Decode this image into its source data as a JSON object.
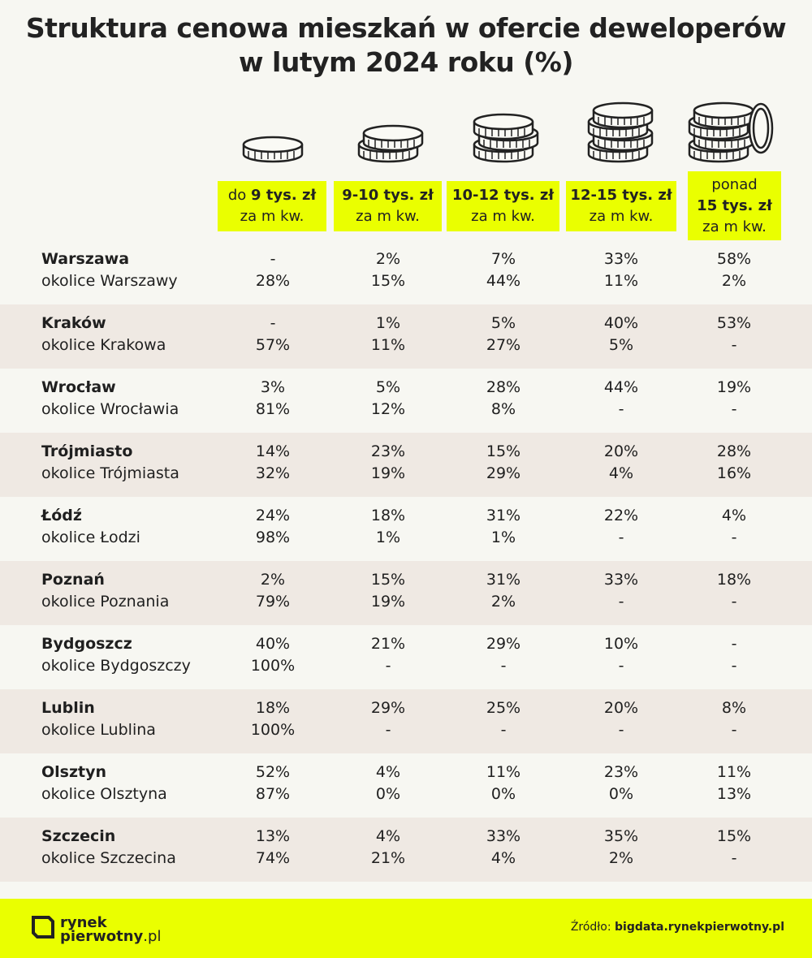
{
  "title_line1": "Struktura cenowa mieszkań w ofercie deweloperów",
  "title_line2": "w lutym 2024 roku (%)",
  "chart_data": {
    "type": "table",
    "columns": [
      {
        "pre": "do ",
        "bold": "9 tys. zł",
        "post": "za m kw."
      },
      {
        "pre": "",
        "bold": "9-10 tys. zł",
        "post": "za m kw."
      },
      {
        "pre": "",
        "bold": "10-12 tys. zł",
        "post": "za m kw."
      },
      {
        "pre": "",
        "bold": "12-15 tys. zł",
        "post": "za m kw."
      },
      {
        "pre": "ponad",
        "bold": "15 tys. zł",
        "post": "za m kw."
      }
    ],
    "rows": [
      {
        "city": "Warszawa",
        "area": "okolice Warszawy",
        "city_values": [
          "-",
          "2%",
          "7%",
          "33%",
          "58%"
        ],
        "area_values": [
          "28%",
          "15%",
          "44%",
          "11%",
          "2%"
        ]
      },
      {
        "city": "Kraków",
        "area": "okolice Krakowa",
        "city_values": [
          "-",
          "1%",
          "5%",
          "40%",
          "53%"
        ],
        "area_values": [
          "57%",
          "11%",
          "27%",
          "5%",
          "-"
        ]
      },
      {
        "city": "Wrocław",
        "area": "okolice Wrocławia",
        "city_values": [
          "3%",
          "5%",
          "28%",
          "44%",
          "19%"
        ],
        "area_values": [
          "81%",
          "12%",
          "8%",
          "-",
          "-"
        ]
      },
      {
        "city": "Trójmiasto",
        "area": "okolice Trójmiasta",
        "city_values": [
          "14%",
          "23%",
          "15%",
          "20%",
          "28%"
        ],
        "area_values": [
          "32%",
          "19%",
          "29%",
          "4%",
          "16%"
        ]
      },
      {
        "city": "Łódź",
        "area": "okolice Łodzi",
        "city_values": [
          "24%",
          "18%",
          "31%",
          "22%",
          "4%"
        ],
        "area_values": [
          "98%",
          "1%",
          "1%",
          "-",
          "-"
        ]
      },
      {
        "city": "Poznań",
        "area": "okolice Poznania",
        "city_values": [
          "2%",
          "15%",
          "31%",
          "33%",
          "18%"
        ],
        "area_values": [
          "79%",
          "19%",
          "2%",
          "-",
          "-"
        ]
      },
      {
        "city": "Bydgoszcz",
        "area": "okolice Bydgoszczy",
        "city_values": [
          "40%",
          "21%",
          "29%",
          "10%",
          "-"
        ],
        "area_values": [
          "100%",
          "-",
          "-",
          "-",
          "-"
        ]
      },
      {
        "city": "Lublin",
        "area": "okolice Lublina",
        "city_values": [
          "18%",
          "29%",
          "25%",
          "20%",
          "8%"
        ],
        "area_values": [
          "100%",
          "-",
          "-",
          "-",
          "-"
        ]
      },
      {
        "city": "Olsztyn",
        "area": "okolice Olsztyna",
        "city_values": [
          "52%",
          "4%",
          "11%",
          "23%",
          "11%"
        ],
        "area_values": [
          "87%",
          "0%",
          "0%",
          "0%",
          "13%"
        ]
      },
      {
        "city": "Szczecin",
        "area": "okolice Szczecina",
        "city_values": [
          "13%",
          "4%",
          "33%",
          "35%",
          "15%"
        ],
        "area_values": [
          "74%",
          "21%",
          "4%",
          "2%",
          "-"
        ]
      }
    ]
  },
  "footer": {
    "logo_line1": "rynek",
    "logo_line2": "pierwotny",
    "logo_suffix": ".pl",
    "source_label": "Źródło: ",
    "source_value": "bigdata.rynekpierwotny.pl"
  },
  "colors": {
    "accent": "#eaff00",
    "shaded_row": "#efe9e3",
    "background": "#f7f7f2",
    "text": "#1f1f1f"
  },
  "icons": [
    "coin-stack-1-icon",
    "coin-stack-2-icon",
    "coin-stack-3-icon",
    "coin-stack-4-icon",
    "coin-stack-5-icon",
    "logo-bracket-icon"
  ]
}
